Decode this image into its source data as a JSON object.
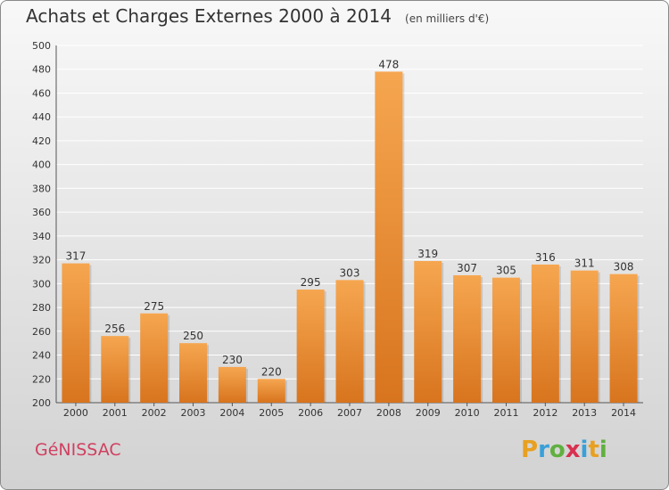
{
  "header": {
    "title": "Achats et Charges Externes 2000 à 2014",
    "unit": "(en milliers d'€)"
  },
  "footer": {
    "commune": "GéNISSAC",
    "logo_letters": [
      "P",
      "r",
      "o",
      "x",
      "i",
      "t",
      "i"
    ],
    "logo_colors": [
      "#e8a020",
      "#3aa0d8",
      "#60b040",
      "#d83050",
      "#3aa0d8",
      "#e8a020",
      "#60b040"
    ]
  },
  "colors": {
    "bar_top": "#f6a650",
    "bar_bottom": "#d8741e",
    "grid": "#ffffff",
    "commune": "#d04060"
  },
  "chart_data": {
    "type": "bar",
    "title": "Achats et Charges Externes 2000 à 2014",
    "subtitle": "(en milliers d'€)",
    "categories": [
      "2000",
      "2001",
      "2002",
      "2003",
      "2004",
      "2005",
      "2006",
      "2007",
      "2008",
      "2009",
      "2010",
      "2011",
      "2012",
      "2013",
      "2014"
    ],
    "values": [
      317,
      256,
      275,
      250,
      230,
      220,
      295,
      303,
      478,
      319,
      307,
      305,
      316,
      311,
      308
    ],
    "ylim": [
      200,
      500
    ],
    "yticks": [
      200,
      220,
      240,
      260,
      280,
      300,
      320,
      340,
      360,
      380,
      400,
      420,
      440,
      460,
      480,
      500
    ],
    "grid": true,
    "xlabel": "",
    "ylabel": ""
  }
}
